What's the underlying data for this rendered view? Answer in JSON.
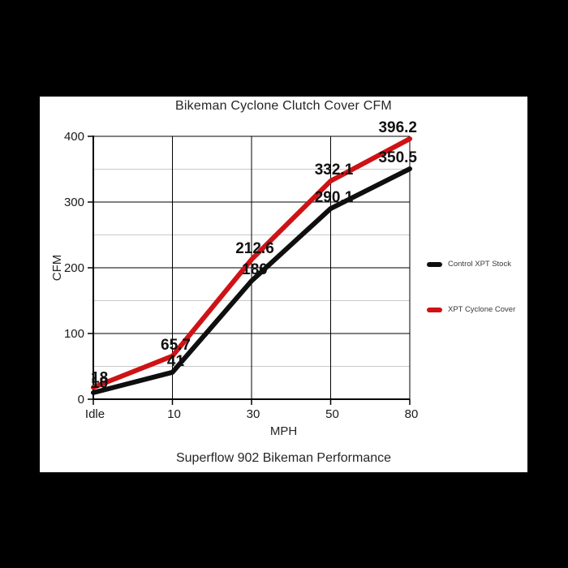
{
  "window": {
    "background_color": "#000000",
    "panel_color": "#ffffff"
  },
  "chart_data": {
    "type": "line",
    "title": "Bikeman Cyclone Clutch Cover CFM",
    "xlabel": "MPH",
    "ylabel": "CFM",
    "caption": "Superflow 902 Bikeman Performance",
    "categories": [
      "Idle",
      "10",
      "30",
      "50",
      "80"
    ],
    "series": [
      {
        "name": "Control XPT Stock",
        "color": "#0f0f0f",
        "values": [
          10,
          41,
          180,
          290.1,
          350.5
        ],
        "point_labels": [
          "10",
          "41",
          "180",
          "290.1",
          "350.5"
        ]
      },
      {
        "name": "XPT Cyclone Cover",
        "color": "#cf1215",
        "values": [
          18,
          65.7,
          212.6,
          332.1,
          396.2
        ],
        "point_labels": [
          "18",
          "65.7",
          "212.6",
          "332.1",
          "396.2"
        ]
      }
    ],
    "ylim": [
      0,
      400
    ],
    "yticks": [
      0,
      100,
      200,
      300,
      400
    ],
    "minor_yticks": [
      50,
      150,
      250,
      350
    ],
    "grid": {
      "vertical": true,
      "horizontal_major": true,
      "horizontal_minor": true
    },
    "legend_position": "right",
    "styles": {
      "axis_color": "#000000",
      "major_grid_color": "#000000",
      "minor_grid_color": "#c9c9c9",
      "tick_label_color": "#1a1a1a",
      "data_label_color": "#111111",
      "line_width": 6
    }
  }
}
